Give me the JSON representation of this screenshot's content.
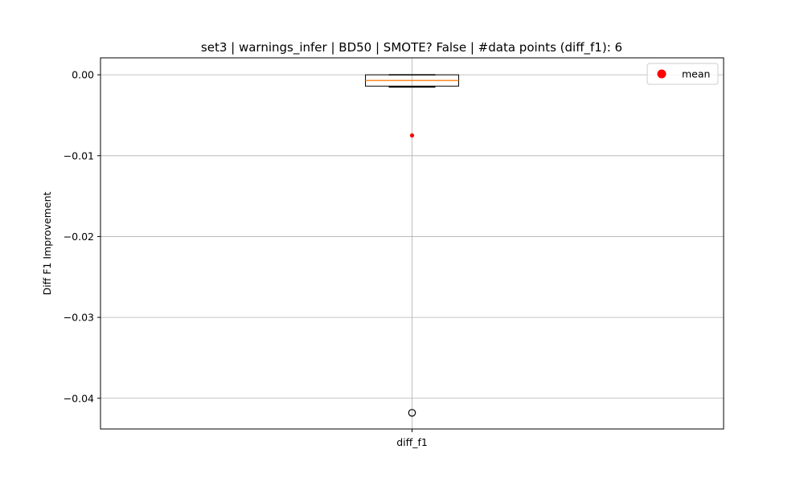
{
  "chart_data": {
    "type": "box",
    "title": "set3 | warnings_infer | BD50 | SMOTE? False | #data points (diff_f1): 6",
    "xlabel": "",
    "ylabel": "Diff F1 Improvement",
    "categories": [
      "diff_f1"
    ],
    "ylim": [
      -0.0438,
      0.0021
    ],
    "yticks": [
      0.0,
      -0.01,
      -0.02,
      -0.03,
      -0.04
    ],
    "ytick_labels": [
      "0.00",
      "−0.01",
      "−0.02",
      "−0.03",
      "−0.04"
    ],
    "grid": true,
    "legend": {
      "position": "top-right",
      "entries": [
        "mean"
      ]
    },
    "boxes": [
      {
        "category": "diff_f1",
        "q1": -0.0014,
        "median": -0.0007,
        "q3": 0.0,
        "whisker_low": -0.0015,
        "whisker_high": 0.0,
        "mean": -0.0075,
        "outliers": [
          -0.0418
        ]
      }
    ],
    "colors": {
      "box": "#000000",
      "median": "#ff7f0e",
      "mean": "#ff0000",
      "grid": "#b0b0b0"
    }
  }
}
